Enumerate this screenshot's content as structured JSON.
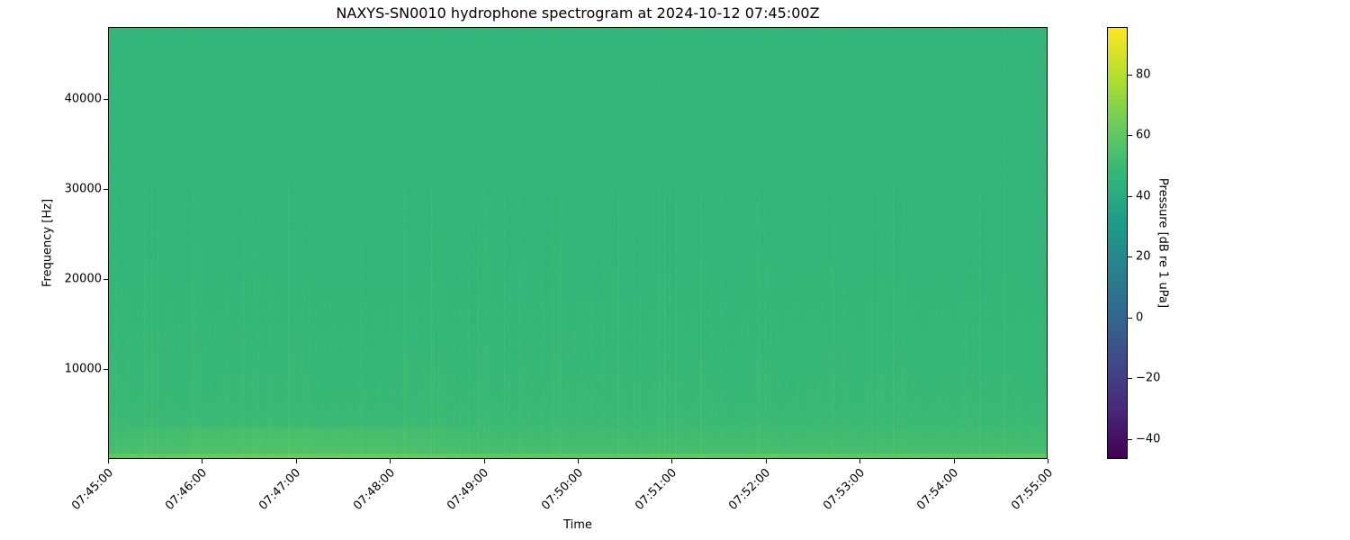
{
  "chart_data": {
    "type": "heatmap",
    "title": "NAXYS-SN0010 hydrophone spectrogram at 2024-10-12 07:45:00Z",
    "xlabel": "Time",
    "ylabel": "Frequency [Hz]",
    "x_tick_labels": [
      "07:45:00",
      "07:46:00",
      "07:47:00",
      "07:48:00",
      "07:49:00",
      "07:50:00",
      "07:51:00",
      "07:52:00",
      "07:53:00",
      "07:54:00",
      "07:55:00"
    ],
    "xlim": [
      "07:45:00",
      "07:55:00"
    ],
    "y_ticks": [
      10000,
      20000,
      30000,
      40000
    ],
    "ylim": [
      0,
      48000
    ],
    "colormap": "viridis",
    "colorbar": {
      "label": "Pressure [dB re 1 uPa]",
      "ticks": [
        -40,
        -20,
        0,
        20,
        40,
        60,
        80
      ],
      "range": [
        -46.5,
        95.6
      ]
    },
    "approx_levels_db": {
      "high_frequency_background": 47,
      "mid_frequency": 50,
      "low_frequency_below_5000Hz": 54,
      "lowest_band_near_0Hz": 60
    },
    "grid": false
  }
}
